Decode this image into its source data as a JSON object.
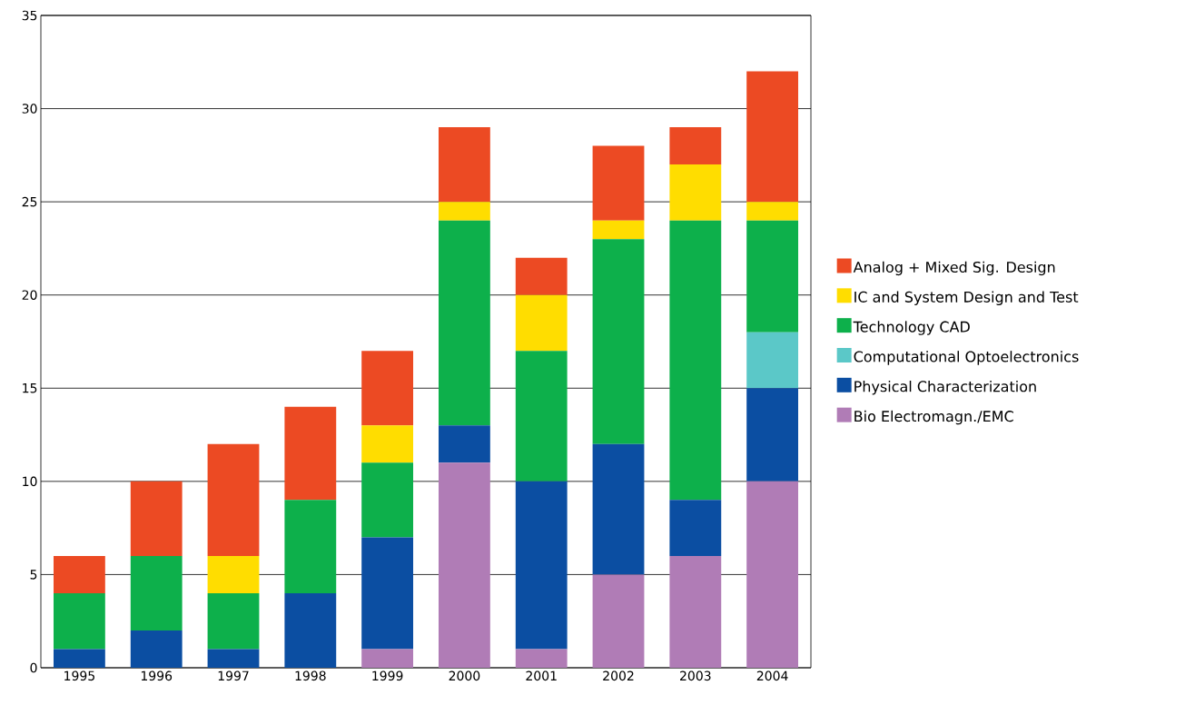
{
  "chart_data": {
    "type": "bar",
    "stacked": true,
    "categories": [
      "1995",
      "1996",
      "1997",
      "1998",
      "1999",
      "2000",
      "2001",
      "2002",
      "2003",
      "2004"
    ],
    "series": [
      {
        "name": "Bio Electromagn./EMC",
        "color": "#b07cb6",
        "values": [
          0,
          0,
          0,
          0,
          1,
          11,
          1,
          5,
          6,
          10
        ]
      },
      {
        "name": "Physical Characterization",
        "color": "#0b4ea2",
        "values": [
          1,
          2,
          1,
          4,
          6,
          2,
          9,
          7,
          3,
          5
        ]
      },
      {
        "name": "Computational Optoelectronics",
        "color": "#5bc8c8",
        "values": [
          0,
          0,
          0,
          0,
          0,
          0,
          0,
          0,
          0,
          3
        ]
      },
      {
        "name": "Technology CAD",
        "color": "#0db04b",
        "values": [
          3,
          4,
          3,
          5,
          4,
          11,
          7,
          11,
          15,
          6
        ]
      },
      {
        "name": "IC and System Design and Test",
        "color": "#ffdd00",
        "values": [
          0,
          0,
          2,
          0,
          2,
          1,
          3,
          1,
          3,
          1
        ]
      },
      {
        "name": "Analog + Mixed Sig. Design",
        "color": "#ec4a23",
        "values": [
          2,
          4,
          6,
          5,
          4,
          4,
          2,
          4,
          2,
          7
        ]
      }
    ],
    "ylim": [
      0,
      35
    ],
    "yticks": [
      0,
      5,
      10,
      15,
      20,
      25,
      30,
      35
    ],
    "grid": "y",
    "legend": "right"
  }
}
